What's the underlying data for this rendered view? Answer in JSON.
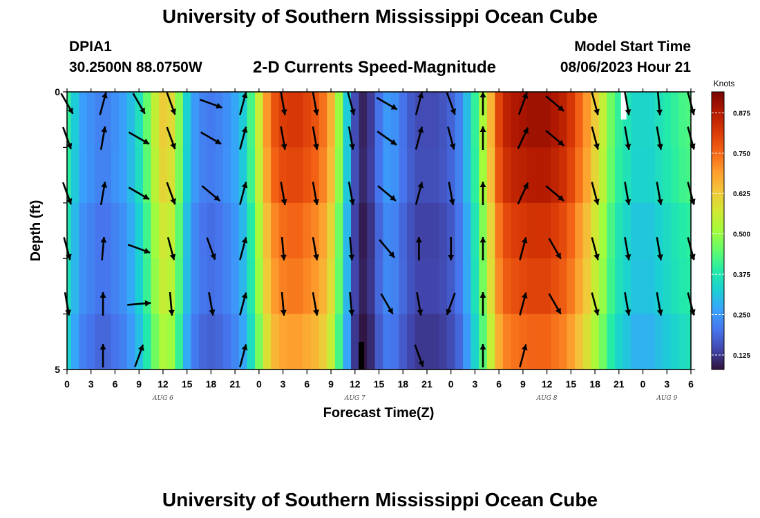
{
  "header": {
    "title": "University of Southern Mississippi Ocean Cube",
    "station_id": "DPIA1",
    "station_coords": "30.2500N  88.0750W",
    "plot_title": "2-D Currents Speed-Magnitude",
    "model_start_label": "Model Start Time",
    "model_start_value": "08/06/2023 Hour 21"
  },
  "footer": {
    "title": "University of Southern Mississippi Ocean Cube"
  },
  "chart_data": {
    "type": "heatmap",
    "title": "2-D Currents Speed-Magnitude",
    "xlabel": "Forecast Time(Z)",
    "ylabel": "Depth (ft)",
    "x_start": "2023-08-06T00:00Z",
    "x_end": "2023-08-09T06:00Z",
    "x_tick_labels": [
      "0",
      "3",
      "6",
      "9",
      "12",
      "15",
      "18",
      "21",
      "0",
      "3",
      "6",
      "9",
      "12",
      "15",
      "18",
      "21",
      "0",
      "3",
      "6",
      "9",
      "12",
      "15",
      "18",
      "21",
      "0",
      "3",
      "6"
    ],
    "date_labels": [
      {
        "text": "AUG 6",
        "time": "2023-08-06T12:00Z"
      },
      {
        "text": "AUG 7",
        "time": "2023-08-07T12:00Z"
      },
      {
        "text": "AUG 8",
        "time": "2023-08-08T12:00Z"
      },
      {
        "text": "AUG 9",
        "time": "2023-08-09T03:00Z"
      }
    ],
    "y_tick_labels": [
      "0",
      "5"
    ],
    "ylim": [
      0,
      5
    ],
    "colorbar": {
      "unit": "Knots",
      "range": [
        0.08,
        0.94
      ],
      "ticks": [
        "0.125",
        "0.250",
        "0.375",
        "0.500",
        "0.625",
        "0.750",
        "0.875"
      ],
      "colormap": [
        "#30123b",
        "#4145ab",
        "#4675ed",
        "#39a2fc",
        "#1bcfd4",
        "#24eca6",
        "#61fc6c",
        "#a4fc3b",
        "#d1e834",
        "#f3c63a",
        "#fe9b2d",
        "#f36315",
        "#d93806",
        "#b11901",
        "#7a0403"
      ]
    },
    "speed_profile": [
      {
        "h": 0,
        "v": 0.4
      },
      {
        "h": 1,
        "v": 0.32
      },
      {
        "h": 2,
        "v": 0.26
      },
      {
        "h": 3,
        "v": 0.24
      },
      {
        "h": 4,
        "v": 0.22
      },
      {
        "h": 5,
        "v": 0.22
      },
      {
        "h": 6,
        "v": 0.24
      },
      {
        "h": 7,
        "v": 0.26
      },
      {
        "h": 8,
        "v": 0.3
      },
      {
        "h": 9,
        "v": 0.36
      },
      {
        "h": 10,
        "v": 0.45
      },
      {
        "h": 11,
        "v": 0.55
      },
      {
        "h": 12,
        "v": 0.62
      },
      {
        "h": 13,
        "v": 0.6
      },
      {
        "h": 14,
        "v": 0.48
      },
      {
        "h": 15,
        "v": 0.33
      },
      {
        "h": 16,
        "v": 0.25
      },
      {
        "h": 17,
        "v": 0.22
      },
      {
        "h": 18,
        "v": 0.21
      },
      {
        "h": 19,
        "v": 0.22
      },
      {
        "h": 20,
        "v": 0.24
      },
      {
        "h": 21,
        "v": 0.27
      },
      {
        "h": 22,
        "v": 0.32
      },
      {
        "h": 23,
        "v": 0.42
      },
      {
        "h": 24,
        "v": 0.56
      },
      {
        "h": 25,
        "v": 0.7
      },
      {
        "h": 26,
        "v": 0.78
      },
      {
        "h": 27,
        "v": 0.81
      },
      {
        "h": 28,
        "v": 0.82
      },
      {
        "h": 29,
        "v": 0.82
      },
      {
        "h": 30,
        "v": 0.8
      },
      {
        "h": 31,
        "v": 0.78
      },
      {
        "h": 32,
        "v": 0.74
      },
      {
        "h": 33,
        "v": 0.66
      },
      {
        "h": 34,
        "v": 0.5
      },
      {
        "h": 35,
        "v": 0.32
      },
      {
        "h": 36,
        "v": 0.15
      },
      {
        "h": 37,
        "v": 0.1
      },
      {
        "h": 38,
        "v": 0.13
      },
      {
        "h": 39,
        "v": 0.2
      },
      {
        "h": 40,
        "v": 0.25
      },
      {
        "h": 41,
        "v": 0.24
      },
      {
        "h": 42,
        "v": 0.2
      },
      {
        "h": 43,
        "v": 0.17
      },
      {
        "h": 44,
        "v": 0.15
      },
      {
        "h": 45,
        "v": 0.15
      },
      {
        "h": 46,
        "v": 0.15
      },
      {
        "h": 47,
        "v": 0.16
      },
      {
        "h": 48,
        "v": 0.18
      },
      {
        "h": 49,
        "v": 0.22
      },
      {
        "h": 50,
        "v": 0.3
      },
      {
        "h": 51,
        "v": 0.4
      },
      {
        "h": 52,
        "v": 0.52
      },
      {
        "h": 53,
        "v": 0.66
      },
      {
        "h": 54,
        "v": 0.8
      },
      {
        "h": 55,
        "v": 0.86
      },
      {
        "h": 56,
        "v": 0.88
      },
      {
        "h": 57,
        "v": 0.89
      },
      {
        "h": 58,
        "v": 0.9
      },
      {
        "h": 59,
        "v": 0.9
      },
      {
        "h": 60,
        "v": 0.9
      },
      {
        "h": 61,
        "v": 0.88
      },
      {
        "h": 62,
        "v": 0.86
      },
      {
        "h": 63,
        "v": 0.82
      },
      {
        "h": 64,
        "v": 0.76
      },
      {
        "h": 65,
        "v": 0.7
      },
      {
        "h": 66,
        "v": 0.62
      },
      {
        "h": 67,
        "v": 0.55
      },
      {
        "h": 68,
        "v": 0.46
      },
      {
        "h": 69,
        "v": 0.4
      },
      {
        "h": 70,
        "v": 0.37
      },
      {
        "h": 71,
        "v": 0.34
      },
      {
        "h": 72,
        "v": 0.34
      },
      {
        "h": 73,
        "v": 0.34
      },
      {
        "h": 74,
        "v": 0.36
      },
      {
        "h": 75,
        "v": 0.38
      },
      {
        "h": 76,
        "v": 0.4
      },
      {
        "h": 77,
        "v": 0.42
      },
      {
        "h": 78,
        "v": 0.43
      }
    ],
    "arrow_rows": [
      [
        {
          "h": 0,
          "dir": 150
        },
        {
          "h": 4.5,
          "dir": 15
        },
        {
          "h": 9,
          "dir": 150
        },
        {
          "h": 13,
          "dir": 160
        },
        {
          "h": 18,
          "dir": 110
        },
        {
          "h": 22,
          "dir": 15
        },
        {
          "h": 27,
          "dir": 170
        },
        {
          "h": 31,
          "dir": 170
        },
        {
          "h": 35.5,
          "dir": 165
        },
        {
          "h": 40,
          "dir": 120
        },
        {
          "h": 44,
          "dir": 15
        },
        {
          "h": 48,
          "dir": 160
        },
        {
          "h": 52,
          "dir": 0
        },
        {
          "h": 57,
          "dir": 20
        },
        {
          "h": 61,
          "dir": 130
        },
        {
          "h": 66,
          "dir": 165
        },
        {
          "h": 70,
          "dir": 170
        },
        {
          "h": 74,
          "dir": 175
        },
        {
          "h": 78,
          "dir": 165
        }
      ],
      [
        {
          "h": 0,
          "dir": 160
        },
        {
          "h": 4.5,
          "dir": 10
        },
        {
          "h": 9,
          "dir": 120
        },
        {
          "h": 13,
          "dir": 160
        },
        {
          "h": 18,
          "dir": 120
        },
        {
          "h": 22,
          "dir": 15
        },
        {
          "h": 27,
          "dir": 170
        },
        {
          "h": 31,
          "dir": 170
        },
        {
          "h": 35.5,
          "dir": 170
        },
        {
          "h": 40,
          "dir": 125
        },
        {
          "h": 44,
          "dir": 15
        },
        {
          "h": 48,
          "dir": 165
        },
        {
          "h": 52,
          "dir": 0
        },
        {
          "h": 57,
          "dir": 25
        },
        {
          "h": 61,
          "dir": 130
        },
        {
          "h": 66,
          "dir": 165
        },
        {
          "h": 70,
          "dir": 170
        },
        {
          "h": 74,
          "dir": 170
        },
        {
          "h": 78,
          "dir": 165
        }
      ],
      [
        {
          "h": 0,
          "dir": 160
        },
        {
          "h": 4.5,
          "dir": 10
        },
        {
          "h": 9,
          "dir": 120
        },
        {
          "h": 13,
          "dir": 160
        },
        {
          "h": 18,
          "dir": 130
        },
        {
          "h": 22,
          "dir": 15
        },
        {
          "h": 27,
          "dir": 170
        },
        {
          "h": 31,
          "dir": 170
        },
        {
          "h": 35.5,
          "dir": 170
        },
        {
          "h": 40,
          "dir": 130
        },
        {
          "h": 44,
          "dir": 15
        },
        {
          "h": 48,
          "dir": 170
        },
        {
          "h": 52,
          "dir": 0
        },
        {
          "h": 57,
          "dir": 25
        },
        {
          "h": 61,
          "dir": 130
        },
        {
          "h": 66,
          "dir": 165
        },
        {
          "h": 70,
          "dir": 170
        },
        {
          "h": 74,
          "dir": 170
        },
        {
          "h": 78,
          "dir": 165
        }
      ],
      [
        {
          "h": 0,
          "dir": 165
        },
        {
          "h": 4.5,
          "dir": 5
        },
        {
          "h": 9,
          "dir": 110
        },
        {
          "h": 13,
          "dir": 165
        },
        {
          "h": 18,
          "dir": 160
        },
        {
          "h": 22,
          "dir": 15
        },
        {
          "h": 27,
          "dir": 175
        },
        {
          "h": 31,
          "dir": 170
        },
        {
          "h": 35.5,
          "dir": 175
        },
        {
          "h": 40,
          "dir": 140
        },
        {
          "h": 44,
          "dir": 0
        },
        {
          "h": 48,
          "dir": 180
        },
        {
          "h": 52,
          "dir": 0
        },
        {
          "h": 57,
          "dir": 15
        },
        {
          "h": 61,
          "dir": 150
        },
        {
          "h": 66,
          "dir": 165
        },
        {
          "h": 70,
          "dir": 170
        },
        {
          "h": 74,
          "dir": 170
        },
        {
          "h": 78,
          "dir": 165
        }
      ],
      [
        {
          "h": 0,
          "dir": 170
        },
        {
          "h": 4.5,
          "dir": 0
        },
        {
          "h": 9,
          "dir": 85
        },
        {
          "h": 13,
          "dir": 175
        },
        {
          "h": 18,
          "dir": 170
        },
        {
          "h": 22,
          "dir": 15
        },
        {
          "h": 27,
          "dir": 175
        },
        {
          "h": 31,
          "dir": 170
        },
        {
          "h": 35.5,
          "dir": 175
        },
        {
          "h": 40,
          "dir": 150
        },
        {
          "h": 44,
          "dir": 170
        },
        {
          "h": 48,
          "dir": 200
        },
        {
          "h": 52,
          "dir": 0
        },
        {
          "h": 57,
          "dir": 15
        },
        {
          "h": 61,
          "dir": 150
        },
        {
          "h": 66,
          "dir": 165
        },
        {
          "h": 70,
          "dir": 170
        },
        {
          "h": 74,
          "dir": 170
        },
        {
          "h": 78,
          "dir": 165
        }
      ],
      [
        {
          "h": 4.5,
          "dir": 0
        },
        {
          "h": 9,
          "dir": 20
        },
        {
          "h": 22,
          "dir": 15
        },
        {
          "h": 44,
          "dir": 160
        },
        {
          "h": 52,
          "dir": 0
        },
        {
          "h": 57,
          "dir": 15
        }
      ]
    ],
    "missing_cells": [
      {
        "h": 36.8,
        "row": 5,
        "note": "gap"
      },
      {
        "h": 69.6,
        "row": 0,
        "note": "blank"
      }
    ]
  }
}
